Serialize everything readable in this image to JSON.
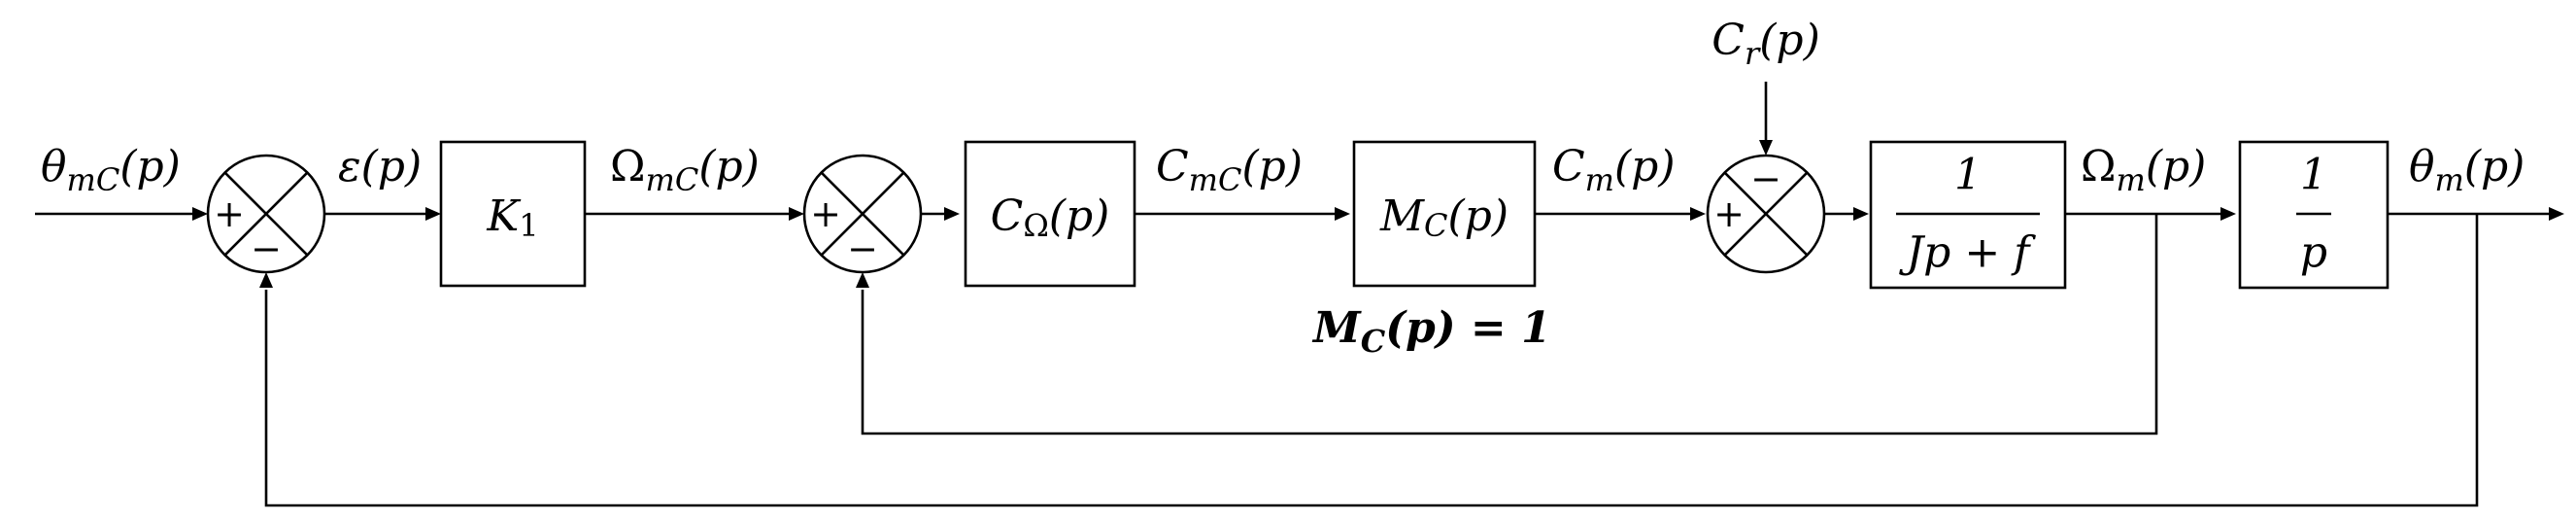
{
  "diagram": {
    "signals": {
      "theta_mc": "θ",
      "theta_mc_sub": "mC",
      "theta_mc_arg": "(p)",
      "epsilon": "ε(p)",
      "omega_mc": "Ω",
      "omega_mc_sub": "mC",
      "omega_mc_arg": "(p)",
      "c_mc": "C",
      "c_mc_sub": "mC",
      "c_mc_arg": "(p)",
      "c_m": "C",
      "c_m_sub": "m",
      "c_m_arg": "(p)",
      "c_r": "C",
      "c_r_sub": "r",
      "c_r_arg": "(p)",
      "omega_m": "Ω",
      "omega_m_sub": "m",
      "omega_m_arg": "(p)",
      "theta_m": "θ",
      "theta_m_sub": "m",
      "theta_m_arg": "(p)"
    },
    "blocks": {
      "k1": "K",
      "k1_sub": "1",
      "c_omega": "C",
      "c_omega_sub": "Ω",
      "c_omega_arg": "(p)",
      "m_c": "M",
      "m_c_sub": "C",
      "m_c_arg": "(p)",
      "plant_num": "1",
      "plant_den": "Jp + f",
      "integrator_num": "1",
      "integrator_den": "p"
    },
    "summing_junctions": {
      "sum1_plus": "+",
      "sum1_minus": "−",
      "sum2_plus": "+",
      "sum2_minus": "−",
      "sum3_plus": "+",
      "sum3_minus": "−"
    },
    "annotation": {
      "m": "M",
      "sub": "C",
      "rest": "(p) = 1"
    }
  }
}
